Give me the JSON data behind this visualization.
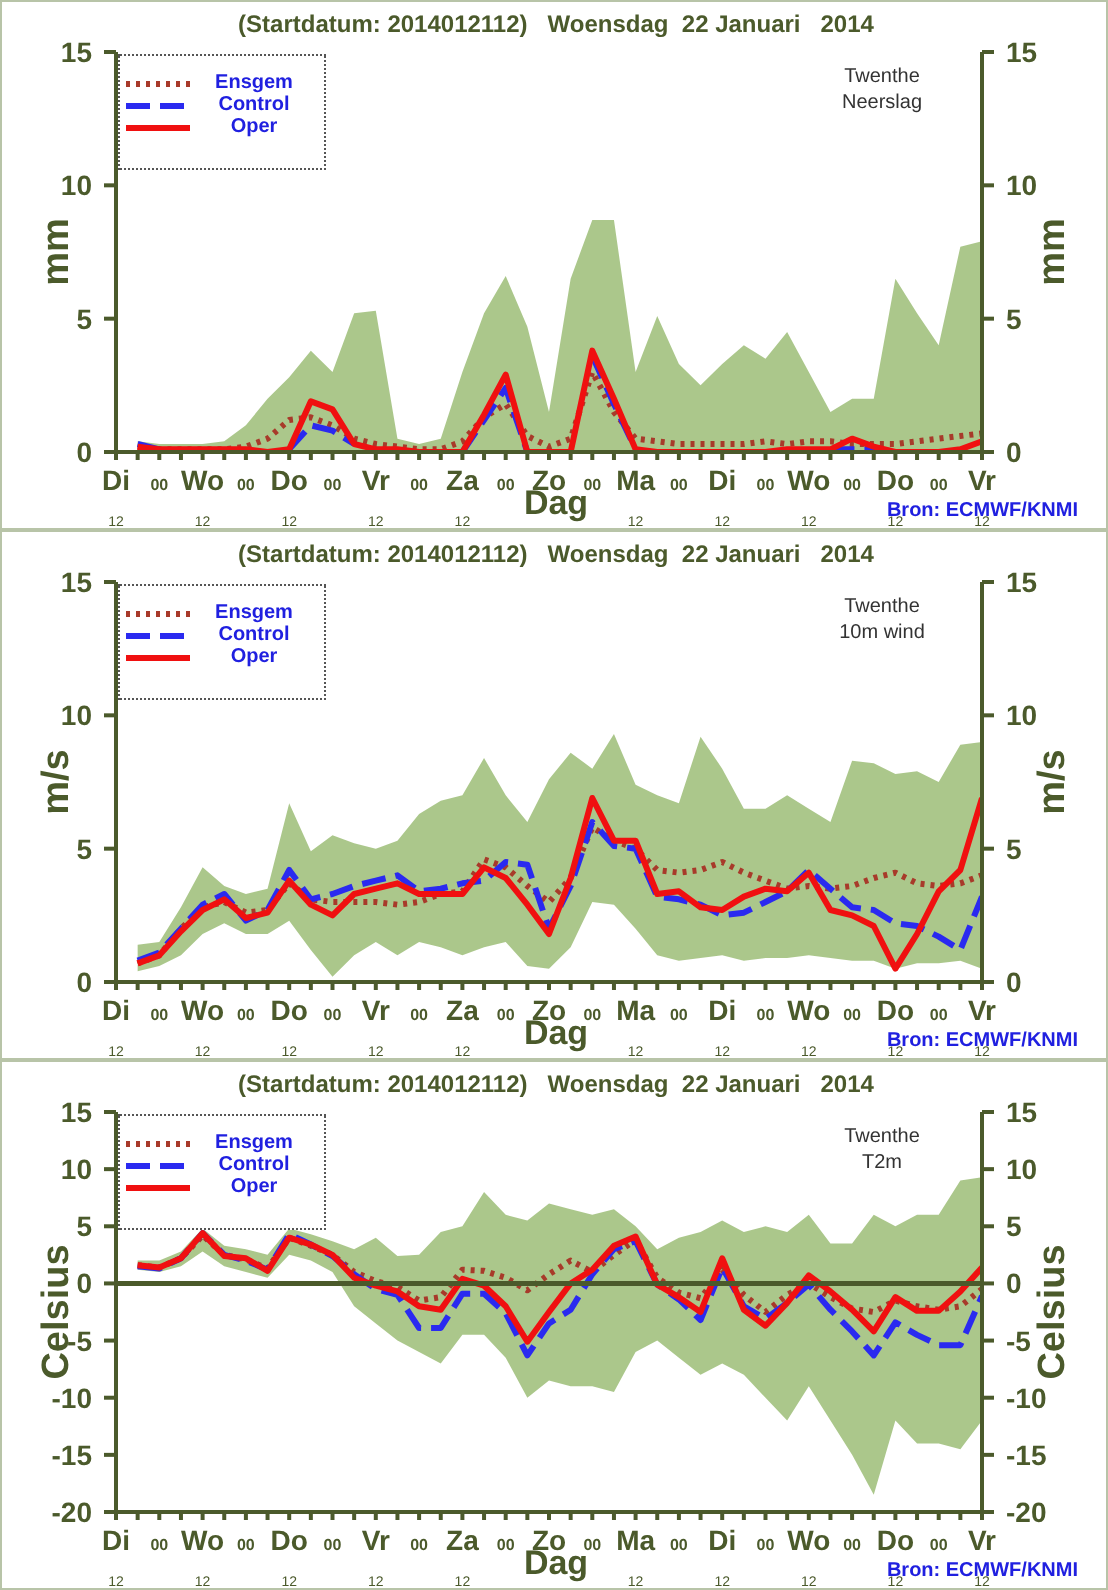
{
  "chart_data": [
    {
      "type": "line",
      "title": "(Startdatum: 2014012112)   Woensdag  22 Januari   2014",
      "xlabel": "Dag",
      "ylabel": "mm",
      "y2label": "mm",
      "annotations": [
        "Twenthe",
        "Neerslag",
        "Bron: ECMWF/KNMI"
      ],
      "legend": "top left",
      "grid": false,
      "marker": "none",
      "categories": [
        "Di\n12",
        null,
        "00",
        null,
        "Wo\n12",
        null,
        "00",
        null,
        "Do\n12",
        null,
        "00",
        null,
        "Vr\n12",
        null,
        "00",
        null,
        "Za\n12",
        null,
        "00",
        null,
        "Zo",
        null,
        "00",
        null,
        "Ma\n12",
        null,
        "00",
        null,
        "Di\n12",
        null,
        "00",
        null,
        "Wo\n12",
        null,
        "00",
        null,
        "Do\n12",
        null,
        "00",
        null,
        "Vr\n12"
      ],
      "ylim": [
        0,
        15
      ],
      "yticks": [
        0,
        5,
        10,
        15
      ],
      "y2lim": [
        0,
        15
      ],
      "y2ticks": [
        0,
        5,
        10,
        15
      ],
      "series": [
        {
          "name": "Ensgem",
          "color": "#a83a2a",
          "line_style": "dotted",
          "values": [
            null,
            0.2,
            0.1,
            0.1,
            0.1,
            0.1,
            0.2,
            0.5,
            1.2,
            1.3,
            1.0,
            0.5,
            0.3,
            0.2,
            0.1,
            0.1,
            0.4,
            1.3,
            1.8,
            0.6,
            0.2,
            0.5,
            3.0,
            1.5,
            0.5,
            0.4,
            0.3,
            0.3,
            0.3,
            0.3,
            0.4,
            0.3,
            0.4,
            0.4,
            0.3,
            0.3,
            0.3,
            0.4,
            0.5,
            0.6,
            0.7
          ],
          "lower": [
            null,
            0,
            0,
            0,
            0,
            0,
            0,
            0,
            0,
            0,
            0,
            0,
            0,
            0,
            0,
            0,
            0,
            0,
            0,
            0,
            0,
            0,
            0,
            0,
            0,
            0,
            0,
            0,
            0,
            0,
            0,
            0,
            0,
            0,
            0,
            0,
            0,
            0,
            0,
            0,
            0
          ],
          "upper": [
            null,
            0.4,
            0.3,
            0.3,
            0.3,
            0.4,
            1.0,
            2.0,
            2.8,
            3.8,
            3.0,
            5.2,
            5.3,
            0.5,
            0.3,
            0.5,
            3.0,
            5.2,
            6.6,
            4.7,
            1.5,
            6.5,
            8.7,
            8.7,
            3.0,
            5.1,
            3.3,
            2.5,
            3.3,
            4.0,
            3.5,
            4.5,
            3.0,
            1.5,
            2.0,
            2.0,
            6.5,
            5.2,
            4.0,
            7.7,
            7.9
          ]
        },
        {
          "name": "Control",
          "color": "#2a2af0",
          "line_style": "dashed",
          "values": [
            null,
            0.3,
            0.1,
            null,
            null,
            null,
            null,
            null,
            0.1,
            1.0,
            0.8,
            0.3,
            null,
            null,
            null,
            null,
            0,
            1.2,
            2.4,
            0,
            null,
            null,
            3.6,
            1.8,
            0.1,
            null,
            null,
            null,
            null,
            null,
            null,
            null,
            null,
            0.1,
            0.1,
            0.1,
            0,
            null,
            null,
            null,
            null
          ]
        },
        {
          "name": "Oper",
          "color": "#f01010",
          "line_style": "solid",
          "values": [
            null,
            0.2,
            0.1,
            0.1,
            0.1,
            0.1,
            0.1,
            0,
            0.1,
            1.9,
            1.6,
            0.3,
            0.1,
            0.1,
            0,
            0,
            0,
            1.4,
            2.9,
            0,
            0,
            0,
            3.8,
            2.0,
            0.1,
            0,
            0,
            0,
            0,
            0,
            0,
            0.1,
            0.1,
            0.1,
            0.5,
            0.2,
            0,
            0,
            0,
            0.1,
            0.4
          ]
        }
      ]
    },
    {
      "type": "line",
      "title": "(Startdatum: 2014012112)   Woensdag  22 Januari   2014",
      "xlabel": "Dag",
      "ylabel": "m/s",
      "y2label": "m/s",
      "annotations": [
        "Twenthe",
        "10m wind",
        "Bron: ECMWF/KNMI"
      ],
      "legend": "top left",
      "grid": false,
      "marker": "none",
      "categories": [
        "Di\n12",
        null,
        "00",
        null,
        "Wo\n12",
        null,
        "00",
        null,
        "Do\n12",
        null,
        "00",
        null,
        "Vr\n12",
        null,
        "00",
        null,
        "Za\n12",
        null,
        "00",
        null,
        "Zo",
        null,
        "00",
        null,
        "Ma\n12",
        null,
        "00",
        null,
        "Di\n12",
        null,
        "00",
        null,
        "Wo\n12",
        null,
        "00",
        null,
        "Do\n12",
        null,
        "00",
        null,
        "Vr\n12"
      ],
      "ylim": [
        0,
        15
      ],
      "yticks": [
        0,
        5,
        10,
        15
      ],
      "y2lim": [
        0,
        15
      ],
      "y2ticks": [
        0,
        5,
        10,
        15
      ],
      "series": [
        {
          "name": "Ensgem",
          "color": "#a83a2a",
          "line_style": "dotted",
          "values": [
            null,
            0.7,
            1.0,
            2.0,
            2.8,
            3.0,
            2.6,
            2.7,
            3.7,
            3.1,
            3.0,
            3.0,
            3.0,
            2.9,
            3.0,
            3.3,
            3.4,
            4.6,
            4.3,
            3.6,
            3.0,
            3.9,
            5.8,
            5.3,
            5.0,
            4.2,
            4.1,
            4.2,
            4.5,
            4.1,
            3.8,
            3.5,
            3.6,
            3.5,
            3.6,
            3.9,
            4.1,
            3.7,
            3.6,
            3.7,
            4.0
          ],
          "lower": [
            null,
            0.4,
            0.6,
            1.0,
            1.8,
            2.2,
            1.8,
            1.8,
            2.3,
            1.2,
            0.2,
            1.0,
            1.5,
            1.0,
            1.5,
            1.3,
            1.0,
            1.3,
            1.5,
            0.6,
            0.5,
            1.3,
            3.0,
            2.9,
            2.0,
            1.0,
            0.8,
            0.9,
            1.0,
            0.8,
            0.9,
            0.9,
            1.0,
            0.9,
            0.8,
            0.8,
            0.5,
            0.7,
            0.7,
            0.8,
            0.5
          ],
          "upper": [
            null,
            1.4,
            1.5,
            2.8,
            4.3,
            3.6,
            3.3,
            3.5,
            6.7,
            4.9,
            5.5,
            5.2,
            5.0,
            5.3,
            6.3,
            6.8,
            7.0,
            8.4,
            7.0,
            6.0,
            7.6,
            8.6,
            8.0,
            9.3,
            7.4,
            7.0,
            6.7,
            9.2,
            8.0,
            6.5,
            6.5,
            7.0,
            6.5,
            6.0,
            8.3,
            8.2,
            7.8,
            7.9,
            7.5,
            8.9,
            9.0
          ]
        },
        {
          "name": "Control",
          "color": "#2a2af0",
          "line_style": "dashed",
          "values": [
            null,
            0.8,
            1.1,
            2.0,
            2.9,
            3.3,
            2.3,
            2.7,
            4.2,
            3.1,
            3.3,
            3.6,
            3.8,
            4.0,
            3.4,
            3.5,
            3.7,
            3.8,
            4.5,
            4.4,
            2.0,
            3.6,
            6.0,
            5.1,
            5.0,
            3.2,
            3.1,
            2.9,
            2.5,
            2.6,
            3.0,
            3.4,
            4.2,
            3.5,
            2.8,
            2.7,
            2.2,
            2.1,
            1.7,
            1.2,
            3.2
          ]
        },
        {
          "name": "Oper",
          "color": "#f01010",
          "line_style": "solid",
          "values": [
            null,
            0.7,
            1.0,
            1.9,
            2.7,
            3.1,
            2.4,
            2.6,
            3.8,
            2.9,
            2.5,
            3.3,
            3.5,
            3.7,
            3.3,
            3.3,
            3.3,
            4.3,
            3.9,
            2.9,
            1.8,
            3.9,
            6.9,
            5.3,
            5.3,
            3.3,
            3.4,
            2.8,
            2.7,
            3.2,
            3.5,
            3.4,
            4.1,
            2.7,
            2.5,
            2.1,
            0.5,
            1.8,
            3.4,
            4.2,
            6.9
          ]
        }
      ]
    },
    {
      "type": "line",
      "title": "(Startdatum: 2014012112)   Woensdag  22 Januari   2014",
      "xlabel": "Dag",
      "ylabel": "Celsius",
      "y2label": "Celsius",
      "annotations": [
        "Twenthe",
        "T2m",
        "Bron: ECMWF/KNMI"
      ],
      "legend": "top left",
      "grid": false,
      "marker": "none",
      "categories": [
        "Di\n12",
        null,
        "00",
        null,
        "Wo\n12",
        null,
        "00",
        null,
        "Do\n12",
        null,
        "00",
        null,
        "Vr\n12",
        null,
        "00",
        null,
        "Za\n12",
        null,
        "00",
        null,
        "Zo",
        null,
        "00",
        null,
        "Ma\n12",
        null,
        "00",
        null,
        "Di\n12",
        null,
        "00",
        null,
        "Wo\n12",
        null,
        "00",
        null,
        "Do\n12",
        null,
        "00",
        null,
        "Vr\n12"
      ],
      "ylim": [
        -20,
        15
      ],
      "yticks": [
        -20,
        -15,
        -10,
        -5,
        0,
        5,
        10,
        15
      ],
      "y2lim": [
        -20,
        15
      ],
      "y2ticks": [
        -20,
        -15,
        -10,
        -5,
        0,
        5,
        10,
        15
      ],
      "ref_lines": [
        {
          "axis": "y",
          "value": 0,
          "color": "#4b5a2b"
        }
      ],
      "series": [
        {
          "name": "Ensgem",
          "color": "#a83a2a",
          "line_style": "dotted",
          "values": [
            null,
            1.6,
            1.4,
            2.2,
            4.2,
            2.5,
            2.1,
            1.3,
            4.0,
            3.3,
            2.5,
            1.0,
            0.2,
            -0.3,
            -1.5,
            -1.2,
            1.2,
            1.1,
            0.5,
            -0.6,
            0.8,
            2.0,
            1.0,
            2.5,
            3.8,
            0.5,
            -0.8,
            -1.3,
            1.2,
            -1.0,
            -2.5,
            -1.0,
            0,
            -1.2,
            -2.2,
            -2.5,
            -1.5,
            -2.0,
            -2.3,
            -2.0,
            -0.5
          ],
          "lower": [
            null,
            1.2,
            1.0,
            1.5,
            2.8,
            1.5,
            1.0,
            0.5,
            2.5,
            2.0,
            1.0,
            -2.0,
            -3.5,
            -5.0,
            -6.0,
            -7.0,
            -4.5,
            -4.5,
            -6.5,
            -10.0,
            -8.5,
            -9.0,
            -9.0,
            -9.5,
            -6.0,
            -5.0,
            -6.5,
            -8.0,
            -7.0,
            -8.0,
            -10.0,
            -12.0,
            -9.0,
            -12.0,
            -15.0,
            -18.5,
            -12.0,
            -14.0,
            -14.0,
            -14.5,
            -12.0
          ],
          "upper": [
            null,
            2.0,
            2.0,
            2.8,
            4.8,
            3.3,
            3.0,
            2.5,
            4.8,
            4.3,
            3.7,
            3.0,
            4.0,
            2.4,
            2.5,
            4.5,
            5.0,
            8.0,
            6.0,
            5.5,
            7.0,
            6.5,
            6.0,
            6.5,
            5.0,
            3.0,
            4.0,
            4.5,
            5.5,
            4.5,
            5.0,
            4.5,
            6.0,
            3.5,
            3.5,
            6.0,
            5.0,
            6.0,
            6.0,
            9.0,
            9.3
          ]
        },
        {
          "name": "Control",
          "color": "#2a2af0",
          "line_style": "dashed",
          "values": [
            null,
            1.5,
            1.3,
            2.2,
            4.4,
            2.5,
            2.0,
            1.2,
            4.3,
            3.4,
            2.4,
            0.8,
            -0.5,
            -1.0,
            -3.9,
            -3.9,
            -0.9,
            -0.9,
            -2.6,
            -6.3,
            -3.5,
            -2.3,
            0.8,
            3.0,
            3.7,
            -0.1,
            -1.4,
            -3.2,
            1.4,
            -2.0,
            -3.1,
            -1.7,
            -0.1,
            -2.3,
            -4.2,
            -6.3,
            -3.4,
            -4.5,
            -5.4,
            -5.4,
            -1.1
          ]
        },
        {
          "name": "Oper",
          "color": "#f01010",
          "line_style": "solid",
          "values": [
            null,
            1.6,
            1.4,
            2.2,
            4.4,
            2.4,
            2.2,
            1.1,
            4.0,
            3.4,
            2.5,
            0.5,
            -0.2,
            -0.7,
            -2.0,
            -2.3,
            0.4,
            -0.2,
            -2.0,
            -5.1,
            -2.5,
            0,
            1.2,
            3.3,
            4.1,
            -0.1,
            -1.2,
            -2.5,
            2.2,
            -2.3,
            -3.7,
            -1.7,
            0.7,
            -0.7,
            -2.3,
            -4.2,
            -1.2,
            -2.4,
            -2.4,
            -0.7,
            1.4
          ]
        }
      ]
    }
  ]
}
